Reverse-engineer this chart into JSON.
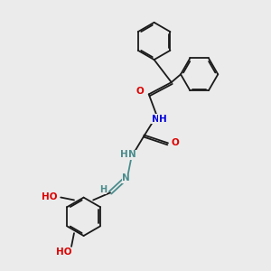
{
  "bg_color": "#ebebeb",
  "bond_color": "#1a1a1a",
  "N_color": "#0000dd",
  "O_color": "#dd0000",
  "teal_color": "#4a8c8c",
  "figsize": [
    3.0,
    3.0
  ],
  "dpi": 100,
  "xlim": [
    0,
    10
  ],
  "ylim": [
    0,
    10
  ]
}
